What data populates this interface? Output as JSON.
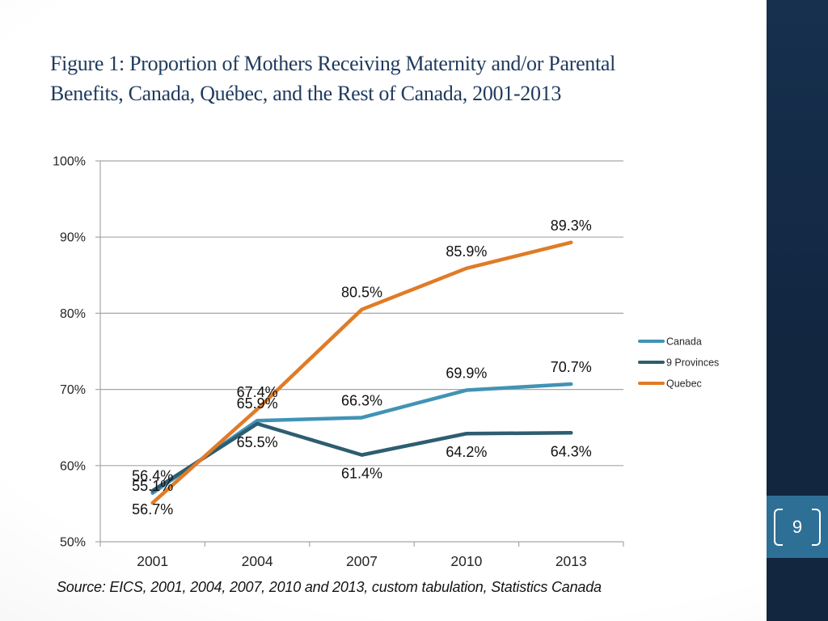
{
  "slide": {
    "title_line1": "Figure 1: Proportion of Mothers Receiving Maternity and/or Parental",
    "title_line2": "Benefits, Canada, Québec, and the Rest of Canada, 2001-2013",
    "source": "Source: EICS, 2001, 2004, 2007, 2010 and 2013, custom tabulation, Statistics Canada",
    "page_number": "9"
  },
  "colors": {
    "title_text": "#1f3a5e",
    "sidebar": "#122640",
    "page_badge": "#2e6f96",
    "canada": "#4193b5",
    "nine_provinces": "#2d5d70",
    "quebec": "#e07b27",
    "gridline": "#a6a6a6",
    "axis_label": "#262626",
    "data_label": "#111111"
  },
  "chart_data": {
    "type": "line",
    "title": "Figure 1: Proportion of Mothers Receiving Maternity and/or Parental Benefits, Canada, Québec, and the Rest of Canada, 2001-2013",
    "categories": [
      "2001",
      "2004",
      "2007",
      "2010",
      "2013"
    ],
    "series": [
      {
        "name": "Canada",
        "color_key": "canada",
        "label_position": "above",
        "values": [
          56.4,
          65.9,
          66.3,
          69.9,
          70.7
        ]
      },
      {
        "name": "9 Provinces",
        "color_key": "nine_provinces",
        "label_position": "below",
        "values": [
          56.7,
          65.5,
          61.4,
          64.2,
          64.3
        ]
      },
      {
        "name": "Quebec",
        "color_key": "quebec",
        "label_position": "above",
        "values": [
          55.1,
          67.4,
          80.5,
          85.9,
          89.3
        ]
      }
    ],
    "ylim": [
      50,
      100
    ],
    "ytick_step": 10,
    "ytick_labels": [
      "50%",
      "60%",
      "70%",
      "80%",
      "90%",
      "100%"
    ],
    "grid": "horizontal-only",
    "legend_position": "right",
    "data_label_format": "0.0%",
    "xlabel": "",
    "ylabel": ""
  }
}
